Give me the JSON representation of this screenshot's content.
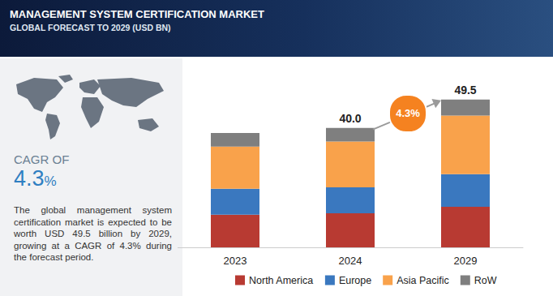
{
  "header": {
    "title": "MANAGEMENT SYSTEM CERTIFICATION MARKET",
    "subtitle": "GLOBAL FORECAST TO 2029 (USD BN)"
  },
  "side_panel": {
    "heading": "CAGR OF",
    "cagr": {
      "value": 4.3,
      "label": "4.3%"
    },
    "text": "The global management system certification market is expected to be worth USD 49.5 billion by 2029, growing at a CAGR of 4.3% during the forecast period."
  },
  "chart_data": {
    "type": "bar",
    "stacked": true,
    "categories": [
      "2023",
      "2024",
      "2029"
    ],
    "series": [
      {
        "name": "North America",
        "color": "#b83a32",
        "values": [
          10.9,
          11.4,
          13.6
        ]
      },
      {
        "name": "Europe",
        "color": "#3a78bf",
        "values": [
          8.7,
          8.7,
          10.9
        ]
      },
      {
        "name": "Asia Pacific",
        "color": "#f9a24b",
        "values": [
          14.1,
          15.3,
          19.6
        ]
      },
      {
        "name": "RoW",
        "color": "#7f7f7f",
        "values": [
          4.6,
          4.6,
          5.4
        ]
      }
    ],
    "totals": {
      "values": [
        null,
        40.0,
        49.5
      ],
      "value_labels": [
        null,
        "40.0",
        "49.5"
      ]
    },
    "annotations": [
      {
        "from": "2024",
        "to": "2029",
        "value": 4.3,
        "label": "4.3%"
      }
    ],
    "ylim": [
      0,
      60
    ],
    "yticks": [
      0,
      20,
      40,
      60
    ],
    "tick_labels": "x",
    "grid": false,
    "legend": "bottom",
    "data_labels": false
  }
}
